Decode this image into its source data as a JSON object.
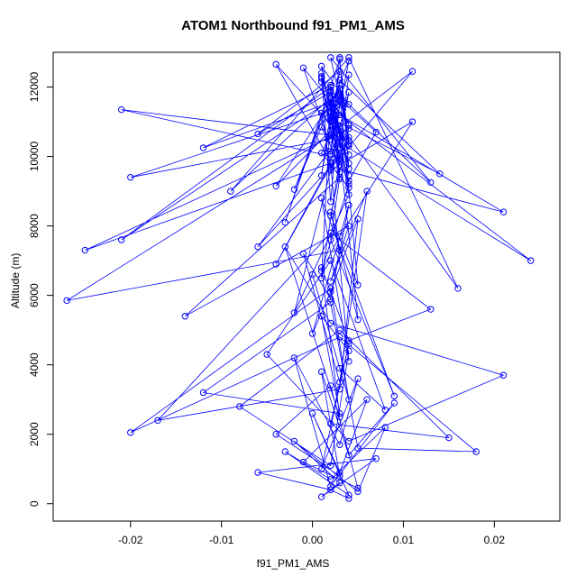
{
  "chart_data": {
    "type": "scatter",
    "title": "ATOM1 Northbound f91_PM1_AMS",
    "xlabel": "f91_PM1_AMS",
    "ylabel": "Altitude (m)",
    "xlim": [
      -0.0285,
      0.0272
    ],
    "ylim": [
      -500,
      13000
    ],
    "x_ticks": [
      -0.02,
      -0.01,
      0.0,
      0.01,
      0.02
    ],
    "x_tick_labels": [
      "-0.02",
      "-0.01",
      "0.00",
      "0.01",
      "0.02"
    ],
    "y_ticks": [
      0,
      2000,
      4000,
      6000,
      8000,
      10000,
      12000
    ],
    "y_tick_labels": [
      "0",
      "2000",
      "4000",
      "6000",
      "8000",
      "10000",
      "12000"
    ],
    "grid": false,
    "legend": "none",
    "marker": "open-circle",
    "connected": true,
    "color": "#0000ff",
    "series": [
      {
        "x": [
          0.004,
          0.002,
          -0.006,
          0.007,
          0.001,
          0.003,
          -0.002,
          0.005,
          0.008,
          0.002,
          -0.003,
          0.004,
          0.0,
          0.003,
          0.006,
          -0.001,
          0.005,
          0.002,
          -0.004,
          0.003,
          0.001,
          0.004,
          0.009,
          0.002,
          -0.002,
          0.003,
          0.005,
          0.001,
          0.004,
          0.002,
          0.015,
          0.003,
          -0.008,
          0.002,
          0.004,
          0.001,
          0.003,
          -0.012,
          0.002,
          0.005,
          0.018,
          0.003,
          -0.02,
          0.002,
          0.004,
          0.0,
          0.003,
          0.008,
          0.002,
          -0.005,
          0.004,
          0.021,
          0.002,
          -0.003,
          0.003,
          0.001,
          0.004,
          0.013,
          0.002,
          -0.017,
          0.003,
          0.005,
          0.002,
          0.0,
          0.004,
          0.002,
          -0.001,
          0.003,
          0.006,
          0.002,
          0.004,
          -0.014,
          0.003,
          0.002,
          0.009,
          0.001,
          0.004,
          0.002,
          -0.004,
          0.003,
          0.005,
          0.002,
          0.003,
          -0.027,
          0.002,
          0.004,
          0.001,
          0.003,
          0.011,
          0.002,
          -0.002,
          0.004,
          0.003,
          0.024,
          0.002,
          0.001,
          0.003,
          -0.025,
          0.004,
          0.002,
          0.005,
          0.003,
          -0.021,
          0.002,
          0.004,
          0.001,
          0.003,
          0.021,
          0.002,
          -0.006,
          0.004,
          0.003,
          0.002,
          0.001,
          0.004,
          0.007,
          0.002,
          -0.003,
          0.003,
          0.004,
          0.002,
          0.014,
          0.003,
          0.002,
          -0.02,
          0.004,
          0.001,
          0.003,
          0.002,
          0.016,
          0.004,
          -0.009,
          0.002,
          0.003,
          0.001,
          0.004,
          0.002,
          0.003,
          -0.012,
          0.002,
          0.004,
          0.003,
          0.011,
          0.002,
          0.001,
          0.003,
          0.004,
          0.002,
          -0.004,
          0.003,
          0.002,
          0.004,
          0.001,
          0.003,
          0.002,
          0.004,
          -0.001,
          0.003,
          0.002,
          0.004,
          0.003,
          -0.004,
          0.002,
          0.001,
          0.003,
          -0.021,
          0.004,
          0.002,
          0.013,
          0.003,
          0.002,
          0.004,
          0.001,
          0.003,
          0.002,
          0.004,
          0.003,
          0.002,
          -0.002,
          0.003,
          0.004,
          0.002,
          0.001,
          0.003,
          -0.006,
          0.002,
          0.004,
          0.003,
          0.002
        ],
        "y": [
          150,
          400,
          900,
          1300,
          200,
          600,
          1800,
          350,
          2200,
          700,
          1500,
          250,
          2600,
          900,
          3000,
          1200,
          450,
          3400,
          2000,
          800,
          3800,
          1400,
          2900,
          500,
          4200,
          1700,
          3600,
          1000,
          4600,
          2300,
          1900,
          5000,
          2800,
          1100,
          4400,
          5400,
          2600,
          3200,
          5800,
          1600,
          1500,
          4800,
          2050,
          6200,
          3000,
          6600,
          3900,
          2700,
          7000,
          4300,
          1800,
          3700,
          5200,
          7400,
          2500,
          6800,
          4700,
          5600,
          7800,
          2400,
          3300,
          8200,
          6100,
          4900,
          8600,
          5900,
          7200,
          3500,
          9000,
          6400,
          8000,
          5400,
          9400,
          7600,
          3100,
          8800,
          4100,
          9800,
          6900,
          10200,
          5300,
          8400,
          7300,
          5850,
          10600,
          9200,
          6700,
          7700,
          11000,
          9600,
          5500,
          8900,
          10400,
          7000,
          11400,
          6500,
          9900,
          7300,
          10800,
          8300,
          6300,
          11800,
          7600,
          12000,
          9100,
          10100,
          11200,
          8400,
          9700,
          7400,
          10900,
          11600,
          8700,
          12400,
          9300,
          10700,
          11900,
          8100,
          12800,
          10300,
          11100,
          9500,
          12200,
          10500,
          9400,
          11500,
          12600,
          10000,
          11300,
          6200,
          12850,
          9000,
          11700,
          10600,
          12300,
          9800,
          11050,
          11650,
          10250,
          12050,
          9450,
          10850,
          12450,
          9650,
          11250,
          10450,
          11850,
          9850,
          12650,
          10650,
          11450,
          10050,
          12250,
          9350,
          11550,
          10950,
          12550,
          9550,
          11150,
          10350,
          11950,
          9150,
          10750,
          12150,
          9950,
          11350,
          10550,
          12850,
          9250,
          11750,
          10150,
          12750,
          10850,
          9750,
          11050,
          12350,
          10250,
          11650,
          9050,
          12050,
          10450,
          11250,
          9450,
          12450,
          10650,
          11850,
          9650,
          12850,
          10050
        ]
      }
    ]
  }
}
